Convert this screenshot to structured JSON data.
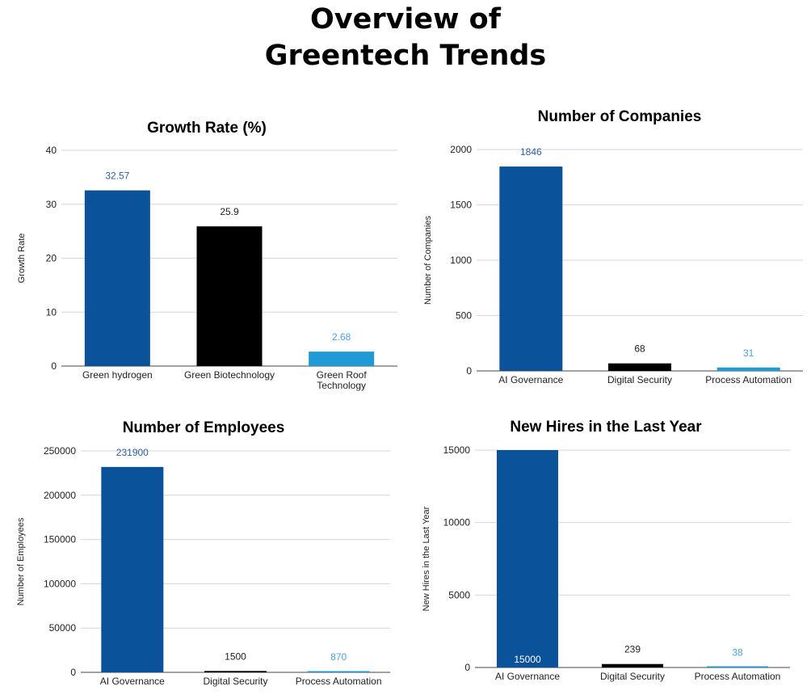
{
  "page": {
    "title_line1": "Overview of",
    "title_line2": "Greentech Trends"
  },
  "colors": {
    "blue": "#0a5299",
    "black": "#000000",
    "light_blue": "#1f9ad6",
    "label_blue": "#2f5f9e",
    "label_light_blue": "#4aa3df",
    "label_dark": "#222222",
    "label_white": "#ffffff"
  },
  "chart_data": [
    {
      "type": "bar",
      "title": "Growth Rate (%)",
      "ylabel": "Growth Rate",
      "xlabel": "",
      "ylim": [
        0,
        40
      ],
      "yticks": [
        0,
        10,
        20,
        30,
        40
      ],
      "categories": [
        [
          "Green hydrogen"
        ],
        [
          "Green Biotechnology"
        ],
        [
          "Green Roof",
          "Technology"
        ]
      ],
      "values": [
        32.57,
        25.9,
        2.68
      ],
      "value_labels": [
        "32.57",
        "25.9",
        "2.68"
      ],
      "bar_colors": [
        "blue",
        "black",
        "light_blue"
      ],
      "label_colors": [
        "label_blue",
        "label_dark",
        "label_light_blue"
      ],
      "label_inside": [
        false,
        false,
        false
      ]
    },
    {
      "type": "bar",
      "title": "Number of Companies",
      "ylabel": "Number of Companies",
      "xlabel": "",
      "ylim": [
        0,
        2000
      ],
      "yticks": [
        0,
        500,
        1000,
        1500,
        2000
      ],
      "categories": [
        [
          "AI Governance"
        ],
        [
          "Digital Security"
        ],
        [
          "Process Automation"
        ]
      ],
      "values": [
        1846,
        68,
        31
      ],
      "value_labels": [
        "1846",
        "68",
        "31"
      ],
      "bar_colors": [
        "blue",
        "black",
        "light_blue"
      ],
      "label_colors": [
        "label_blue",
        "label_dark",
        "label_light_blue"
      ],
      "label_inside": [
        false,
        false,
        false
      ]
    },
    {
      "type": "bar",
      "title": "Number of Employees",
      "ylabel": "Number of Employees",
      "xlabel": "",
      "ylim": [
        0,
        250000
      ],
      "yticks": [
        0,
        50000,
        100000,
        150000,
        200000,
        250000
      ],
      "categories": [
        [
          "AI Governance"
        ],
        [
          "Digital Security"
        ],
        [
          "Process Automation"
        ]
      ],
      "values": [
        231900,
        1500,
        870
      ],
      "value_labels": [
        "231900",
        "1500",
        "870"
      ],
      "bar_colors": [
        "blue",
        "black",
        "light_blue"
      ],
      "label_colors": [
        "label_blue",
        "label_dark",
        "label_light_blue"
      ],
      "label_inside": [
        false,
        false,
        false
      ]
    },
    {
      "type": "bar",
      "title": "New Hires in the Last Year",
      "ylabel": "New Hires in the Last Year",
      "xlabel": "",
      "ylim": [
        0,
        15000
      ],
      "yticks": [
        0,
        5000,
        10000,
        15000
      ],
      "categories": [
        [
          "AI Governance"
        ],
        [
          "Digital Security"
        ],
        [
          "Process Automation"
        ]
      ],
      "values": [
        15000,
        239,
        38
      ],
      "value_labels": [
        "15000",
        "239",
        "38"
      ],
      "bar_colors": [
        "blue",
        "black",
        "light_blue"
      ],
      "label_colors": [
        "label_white",
        "label_dark",
        "label_light_blue"
      ],
      "label_inside": [
        true,
        false,
        false
      ]
    }
  ]
}
